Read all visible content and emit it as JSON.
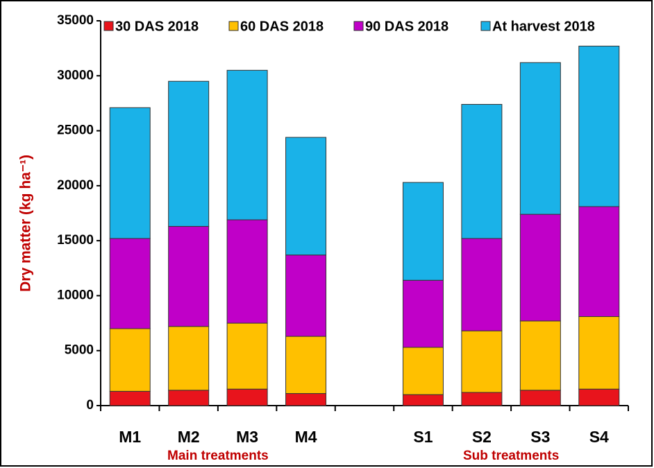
{
  "chart_data": {
    "type": "stacked_bar",
    "categories": [
      "M1",
      "M2",
      "M3",
      "M4",
      null,
      "S1",
      "S2",
      "S3",
      "S4"
    ],
    "series": [
      {
        "name": "30 DAS 2018",
        "color": "#e8141c",
        "values": [
          1300,
          1400,
          1500,
          1100,
          null,
          1000,
          1200,
          1400,
          1500
        ]
      },
      {
        "name": "60 DAS 2018",
        "color": "#ffc000",
        "values": [
          5700,
          5800,
          6000,
          5200,
          null,
          4300,
          5600,
          6300,
          6600
        ]
      },
      {
        "name": "90 DAS 2018",
        "color": "#c000c8",
        "values": [
          8200,
          9100,
          9400,
          7400,
          null,
          6100,
          8400,
          9700,
          10000
        ]
      },
      {
        "name": "At harvest 2018",
        "color": "#1ab2e8",
        "values": [
          11900,
          13200,
          13600,
          10700,
          null,
          8900,
          12200,
          13800,
          14600
        ]
      }
    ],
    "y_label": "Dry matter (kg ha⁻¹)",
    "group_labels": [
      "Main treatments",
      "Sub treatments"
    ],
    "ylim": [
      0,
      35000
    ],
    "yticks": [
      0,
      5000,
      10000,
      15000,
      20000,
      25000,
      30000,
      35000
    ],
    "grid": false
  }
}
